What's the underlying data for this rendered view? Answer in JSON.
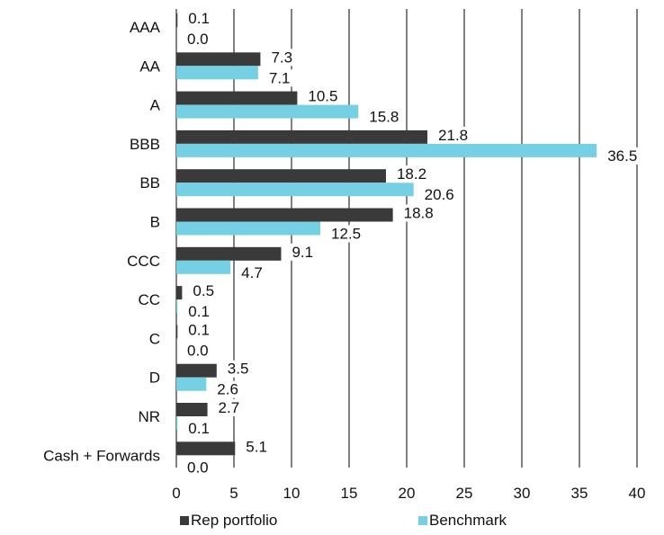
{
  "chart_data": {
    "type": "bar",
    "orientation": "horizontal",
    "categories": [
      "AAA",
      "AA",
      "A",
      "BBB",
      "BB",
      "B",
      "CCC",
      "CC",
      "C",
      "D",
      "NR",
      "Cash + Forwards"
    ],
    "series": [
      {
        "name": "Rep portfolio",
        "color": "#3a3a3a",
        "values": [
          0.1,
          7.3,
          10.5,
          21.8,
          18.2,
          18.8,
          9.1,
          0.5,
          0.1,
          3.5,
          2.7,
          5.1
        ]
      },
      {
        "name": "Benchmark",
        "color": "#76d0e3",
        "values": [
          0.0,
          7.1,
          15.8,
          36.5,
          20.6,
          12.5,
          4.7,
          0.1,
          0.0,
          2.6,
          0.1,
          0.0
        ]
      }
    ],
    "xlim": [
      0,
      40
    ],
    "xticks": [
      0,
      5,
      10,
      15,
      20,
      25,
      30,
      35,
      40
    ],
    "grid": "vertical",
    "legend_position": "bottom"
  }
}
